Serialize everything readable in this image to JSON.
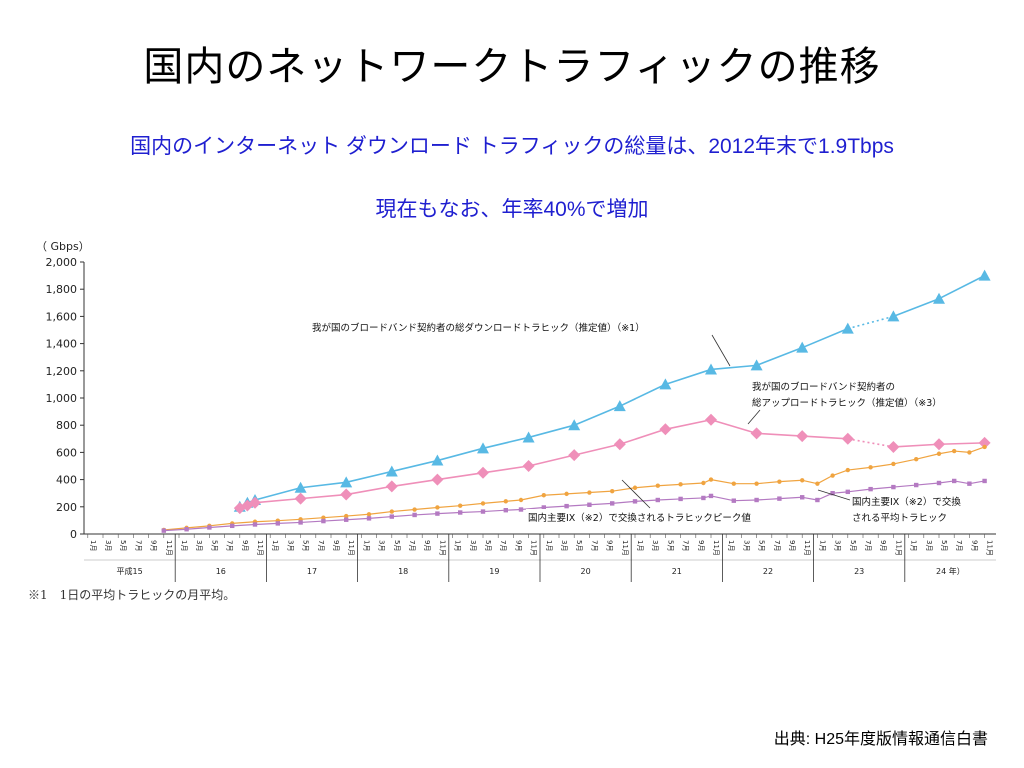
{
  "slide": {
    "title": "国内のネットワークトラフィックの推移",
    "subtitle_line1": "国内のインターネット ダウンロード トラフィックの総量は、2012年末で1.9Tbps",
    "subtitle_line2": "現在もなお、年率40%で増加",
    "footnote": "※1　1日の平均トラヒックの月平均。",
    "source": "出典: H25年度版情報通信白書"
  },
  "chart_data": {
    "type": "line",
    "title": "",
    "y_unit_label": "（ Gbps）",
    "ylim": [
      0,
      2000
    ],
    "y_ticks": [
      "0",
      "200",
      "400",
      "600",
      "800",
      "1,000",
      "1,200",
      "1,400",
      "1,600",
      "1,800",
      "2,000"
    ],
    "x_domain": [
      "2003-11",
      "2012-11"
    ],
    "month_tick_labels": [
      "1月",
      "3月",
      "5月",
      "7月",
      "9月",
      "11月"
    ],
    "year_labels": [
      "平成15",
      "16",
      "17",
      "18",
      "19",
      "20",
      "21",
      "22",
      "23",
      "24 年）"
    ],
    "grid": false,
    "colors": {
      "download": "#58b9e4",
      "upload": "#ef8fb9",
      "ix_peak": "#f0a440",
      "ix_average": "#b47ac2"
    },
    "series": [
      {
        "id": "download",
        "name": "我が国のブロードバンド契約者の総ダウンロードトラヒック（推定値）（※1）",
        "marker": "triangle",
        "dotted_segment_after": "2011-05",
        "points": [
          [
            "2004-09",
            200
          ],
          [
            "2004-10",
            230
          ],
          [
            "2004-11",
            250
          ],
          [
            "2005-05",
            340
          ],
          [
            "2005-11",
            380
          ],
          [
            "2006-05",
            460
          ],
          [
            "2006-11",
            540
          ],
          [
            "2007-05",
            630
          ],
          [
            "2007-11",
            710
          ],
          [
            "2008-05",
            800
          ],
          [
            "2008-11",
            940
          ],
          [
            "2009-05",
            1100
          ],
          [
            "2009-11",
            1210
          ],
          [
            "2010-05",
            1240
          ],
          [
            "2010-11",
            1370
          ],
          [
            "2011-05",
            1510
          ],
          [
            "2011-11",
            1600
          ],
          [
            "2012-05",
            1730
          ],
          [
            "2012-11",
            1900
          ]
        ]
      },
      {
        "id": "upload",
        "name": "我が国のブロードバンド契約者の総アップロードトラヒック（推定値）（※3）",
        "marker": "diamond",
        "dotted_segment_after": "2011-05",
        "points": [
          [
            "2004-09",
            190
          ],
          [
            "2004-10",
            210
          ],
          [
            "2004-11",
            230
          ],
          [
            "2005-05",
            260
          ],
          [
            "2005-11",
            290
          ],
          [
            "2006-05",
            350
          ],
          [
            "2006-11",
            400
          ],
          [
            "2007-05",
            450
          ],
          [
            "2007-11",
            500
          ],
          [
            "2008-05",
            580
          ],
          [
            "2008-11",
            660
          ],
          [
            "2009-05",
            770
          ],
          [
            "2009-11",
            840
          ],
          [
            "2010-05",
            740
          ],
          [
            "2010-11",
            720
          ],
          [
            "2011-05",
            700
          ],
          [
            "2011-11",
            640
          ],
          [
            "2012-05",
            660
          ],
          [
            "2012-11",
            670
          ]
        ]
      },
      {
        "id": "ix_peak",
        "name": "国内主要IX（※2）で交換されるトラヒックピーク値",
        "marker": "small-dot",
        "points": [
          [
            "2003-11",
            30
          ],
          [
            "2004-02",
            45
          ],
          [
            "2004-05",
            60
          ],
          [
            "2004-08",
            78
          ],
          [
            "2004-11",
            90
          ],
          [
            "2005-02",
            98
          ],
          [
            "2005-05",
            108
          ],
          [
            "2005-08",
            120
          ],
          [
            "2005-11",
            132
          ],
          [
            "2006-02",
            145
          ],
          [
            "2006-05",
            165
          ],
          [
            "2006-08",
            180
          ],
          [
            "2006-11",
            195
          ],
          [
            "2007-02",
            208
          ],
          [
            "2007-05",
            225
          ],
          [
            "2007-08",
            240
          ],
          [
            "2007-10",
            250
          ],
          [
            "2008-01",
            285
          ],
          [
            "2008-04",
            295
          ],
          [
            "2008-07",
            305
          ],
          [
            "2008-10",
            315
          ],
          [
            "2009-01",
            340
          ],
          [
            "2009-04",
            355
          ],
          [
            "2009-07",
            365
          ],
          [
            "2009-10",
            375
          ],
          [
            "2009-11",
            400
          ],
          [
            "2010-02",
            370
          ],
          [
            "2010-05",
            370
          ],
          [
            "2010-08",
            385
          ],
          [
            "2010-11",
            395
          ],
          [
            "2011-01",
            370
          ],
          [
            "2011-03",
            430
          ],
          [
            "2011-05",
            470
          ],
          [
            "2011-08",
            490
          ],
          [
            "2011-11",
            515
          ],
          [
            "2012-02",
            550
          ],
          [
            "2012-05",
            590
          ],
          [
            "2012-07",
            610
          ],
          [
            "2012-09",
            600
          ],
          [
            "2012-11",
            640
          ]
        ]
      },
      {
        "id": "ix_average",
        "name": "国内主要IX（※2）で交換される平均トラヒック",
        "marker": "small-square",
        "points": [
          [
            "2003-11",
            25
          ],
          [
            "2004-02",
            35
          ],
          [
            "2004-05",
            48
          ],
          [
            "2004-08",
            60
          ],
          [
            "2004-11",
            70
          ],
          [
            "2005-02",
            78
          ],
          [
            "2005-05",
            85
          ],
          [
            "2005-08",
            95
          ],
          [
            "2005-11",
            105
          ],
          [
            "2006-02",
            115
          ],
          [
            "2006-05",
            128
          ],
          [
            "2006-08",
            140
          ],
          [
            "2006-11",
            150
          ],
          [
            "2007-02",
            158
          ],
          [
            "2007-05",
            165
          ],
          [
            "2007-08",
            175
          ],
          [
            "2007-10",
            180
          ],
          [
            "2008-01",
            195
          ],
          [
            "2008-04",
            205
          ],
          [
            "2008-07",
            215
          ],
          [
            "2008-10",
            225
          ],
          [
            "2009-01",
            240
          ],
          [
            "2009-04",
            250
          ],
          [
            "2009-07",
            258
          ],
          [
            "2009-10",
            265
          ],
          [
            "2009-11",
            280
          ],
          [
            "2010-02",
            245
          ],
          [
            "2010-05",
            250
          ],
          [
            "2010-08",
            260
          ],
          [
            "2010-11",
            270
          ],
          [
            "2011-01",
            250
          ],
          [
            "2011-03",
            300
          ],
          [
            "2011-05",
            310
          ],
          [
            "2011-08",
            330
          ],
          [
            "2011-11",
            345
          ],
          [
            "2012-02",
            360
          ],
          [
            "2012-05",
            375
          ],
          [
            "2012-07",
            390
          ],
          [
            "2012-09",
            370
          ],
          [
            "2012-11",
            390
          ]
        ]
      }
    ],
    "annotations": {
      "download_label": "我が国のブロードバンド契約者の総ダウンロードトラヒック（推定値）（※1）",
      "upload_label_line1": "我が国のブロードバンド契約者の",
      "upload_label_line2": "総アップロードトラヒック（推定値）（※3）",
      "ix_peak_label": "国内主要IX（※2）で交換されるトラヒックピーク値",
      "ix_average_label_line1": "国内主要IX（※2）で交換",
      "ix_average_label_line2": "される平均トラヒック"
    }
  }
}
